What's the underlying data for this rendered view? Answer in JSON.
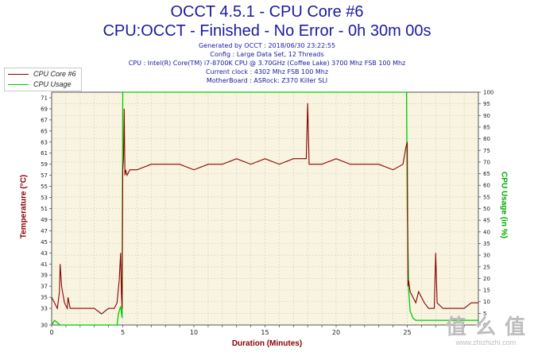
{
  "header": {
    "title_line1": "OCCT 4.5.1 - CPU Core #6",
    "title_line2": "CPU:OCCT - Finished - No Error - 0h 30m 00s"
  },
  "info": {
    "generated": "Generated by OCCT : 2018/06/30 23:22:55",
    "config": "Config : Large Data Set, 12 Threads",
    "cpu": "CPU : Intel(R) Core(TM) i7-8700K CPU @ 3.70GHz (Coffee Lake) 3700 Mhz FSB 100 Mhz",
    "clock": "Current clock : 4302 Mhz FSB 100 Mhz",
    "motherboard": "MotherBoard : ASRock: Z370 Killer SLI"
  },
  "watermark": {
    "logo": "值 么 值",
    "url": "www.zhizhizhi.com"
  },
  "colors": {
    "temperature": "#8b0000",
    "usage": "#00cc00",
    "plot_bg": "#f8f4e0",
    "grid": "#d2d2d2"
  },
  "chart_data": {
    "type": "line",
    "xlabel": "Duration (Minutes)",
    "ylabel": "Temperature (°C)",
    "ylabel_right": "CPU Usage (in %)",
    "xlim": [
      0,
      30
    ],
    "ylim": [
      30,
      72
    ],
    "ylim_right": [
      0,
      100
    ],
    "x_ticks": [
      0,
      5,
      10,
      15,
      20,
      25
    ],
    "y_ticks": [
      30,
      33,
      35,
      37,
      39,
      41,
      43,
      45,
      47,
      49,
      51,
      53,
      55,
      57,
      59,
      61,
      63,
      65,
      67,
      69,
      71
    ],
    "y_ticks_right": [
      0,
      5,
      10,
      15,
      20,
      25,
      30,
      35,
      40,
      45,
      50,
      55,
      60,
      65,
      70,
      75,
      80,
      85,
      90,
      95,
      100
    ],
    "grid": true,
    "legend_position": "top-left",
    "series": [
      {
        "name": "CPU Core #6",
        "axis": "left",
        "x": [
          0,
          0.2,
          0.4,
          0.55,
          0.6,
          0.7,
          0.9,
          1.1,
          1.15,
          1.3,
          1.6,
          2.0,
          2.5,
          3.0,
          3.5,
          4.0,
          4.4,
          4.6,
          4.75,
          4.85,
          4.9,
          4.95,
          5.0,
          5.05,
          5.1,
          5.15,
          5.2,
          5.3,
          5.5,
          6,
          7,
          8,
          9,
          10,
          11,
          12,
          13,
          14,
          15,
          16,
          17,
          17.9,
          18.0,
          18.1,
          19,
          20,
          21,
          22,
          23,
          24,
          24.7,
          24.9,
          25.0,
          25.05,
          25.1,
          25.2,
          25.4,
          25.6,
          25.8,
          26.0,
          26.2,
          26.5,
          26.9,
          27.0,
          27.1,
          27.5,
          28,
          29,
          29.5,
          30
        ],
        "y": [
          35,
          34,
          33,
          36,
          41,
          37,
          34,
          33,
          35,
          33,
          33,
          33,
          33,
          33,
          32,
          33,
          33,
          34,
          38,
          43,
          36,
          33,
          58,
          60,
          69,
          57,
          58,
          57,
          58,
          58,
          59,
          59,
          59,
          58,
          59,
          59,
          60,
          59,
          60,
          59,
          60,
          60,
          70,
          59,
          59,
          60,
          59,
          59,
          59,
          58,
          59,
          62,
          63,
          37,
          38,
          36,
          35,
          34,
          36,
          35,
          34,
          33,
          33,
          43,
          34,
          33,
          33,
          33,
          34,
          34
        ]
      },
      {
        "name": "CPU Usage",
        "axis": "right",
        "x": [
          0,
          0.2,
          0.4,
          0.6,
          1.0,
          2.0,
          3.0,
          4.0,
          4.6,
          4.7,
          4.85,
          4.95,
          5.0,
          5.05,
          6,
          10,
          15,
          20,
          24.8,
          24.95,
          25.0,
          25.1,
          25.2,
          25.4,
          25.6,
          26,
          27,
          28,
          29,
          30
        ],
        "y": [
          0,
          2,
          1,
          0,
          0,
          0,
          0,
          0,
          0,
          5,
          8,
          3,
          100,
          100,
          100,
          100,
          100,
          100,
          100,
          100,
          50,
          15,
          6,
          3,
          2,
          2,
          2,
          2,
          2,
          2
        ]
      }
    ]
  }
}
